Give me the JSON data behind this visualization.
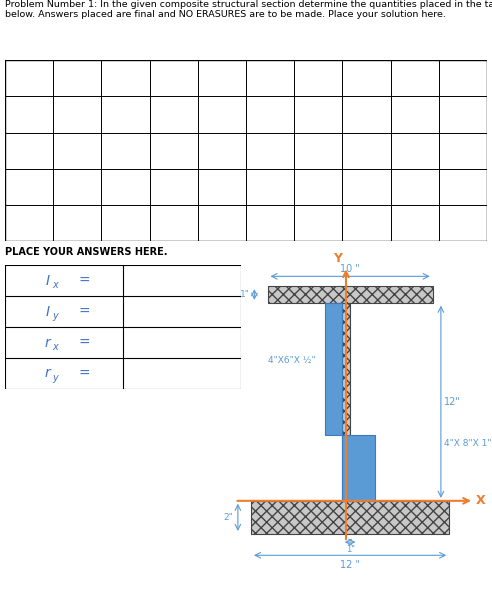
{
  "title_text": "Problem Number 1: In the given composite structural section determine the quantities placed in the table\nbelow. Answers placed are final and NO ERASURES are to be made. Place your solution here.",
  "table_rows": 5,
  "table_cols": 10,
  "answers_label": "PLACE YOUR ANSWERS HERE.",
  "answer_labels": [
    "I",
    "I",
    "r",
    "r"
  ],
  "answer_subs": [
    "x",
    "y",
    "x",
    "y"
  ],
  "bg_color": "#ffffff",
  "blue_color": "#5b9bd5",
  "orange_color": "#ed7d31",
  "hatch_fc": "#c8c8c8",
  "dim_color": "#5b9bd5",
  "text_color": "#000000",
  "label_color": "#4472c4"
}
